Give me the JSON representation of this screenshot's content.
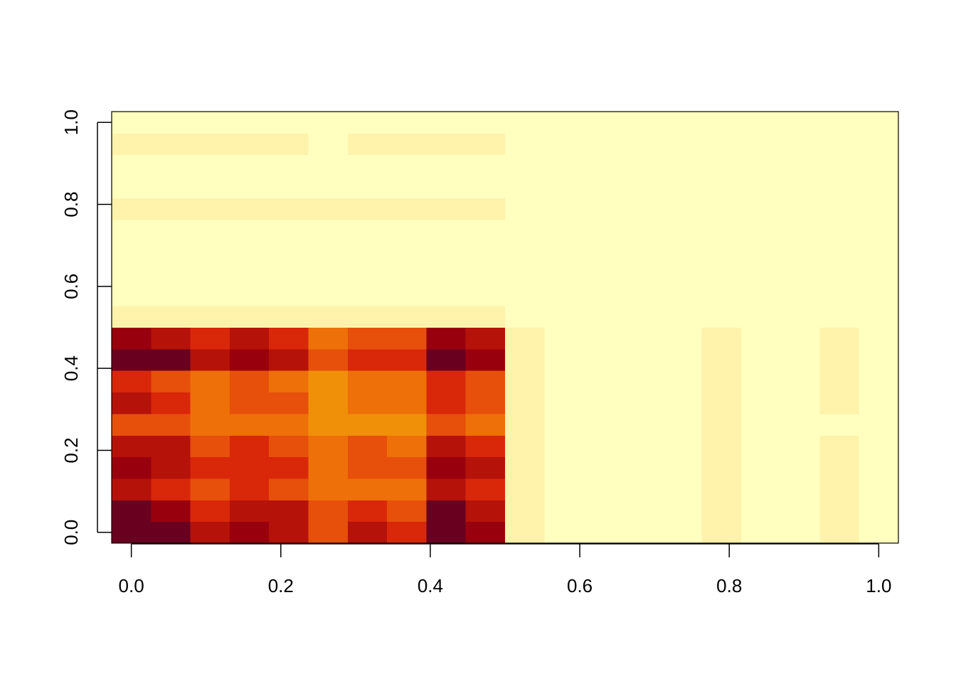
{
  "chart_data": {
    "type": "heatmap",
    "x": [
      0,
      0.0526,
      0.1053,
      0.1579,
      0.2105,
      0.2632,
      0.3158,
      0.3684,
      0.4211,
      0.4737,
      0.5263,
      0.5789,
      0.6316,
      0.6842,
      0.7368,
      0.7895,
      0.8421,
      0.8947,
      0.9474,
      1
    ],
    "y": [
      0,
      0.0526,
      0.1053,
      0.1579,
      0.2105,
      0.2632,
      0.3158,
      0.3684,
      0.4211,
      0.4737,
      0.5263,
      0.5789,
      0.6316,
      0.6842,
      0.7368,
      0.7895,
      0.8421,
      0.8947,
      0.9474,
      1
    ],
    "z": [
      [
        8,
        8,
        6,
        7,
        6,
        4,
        6,
        5,
        8,
        7,
        1,
        0,
        0,
        0,
        0,
        1,
        0,
        0,
        1,
        0
      ],
      [
        8,
        7,
        5,
        6,
        6,
        4,
        5,
        4,
        8,
        6,
        1,
        0,
        0,
        0,
        0,
        1,
        0,
        0,
        1,
        0
      ],
      [
        6,
        5,
        4,
        5,
        4,
        3,
        3,
        3,
        6,
        5,
        1,
        0,
        0,
        0,
        0,
        1,
        0,
        0,
        1,
        0
      ],
      [
        7,
        6,
        5,
        5,
        5,
        3,
        4,
        4,
        7,
        6,
        1,
        0,
        0,
        0,
        0,
        1,
        0,
        0,
        1,
        0
      ],
      [
        6,
        6,
        4,
        5,
        4,
        3,
        4,
        3,
        6,
        5,
        1,
        0,
        0,
        0,
        0,
        1,
        0,
        0,
        1,
        0
      ],
      [
        4,
        4,
        3,
        3,
        3,
        2,
        2,
        2,
        4,
        3,
        1,
        0,
        0,
        0,
        0,
        1,
        0,
        0,
        0,
        0
      ],
      [
        6,
        5,
        3,
        4,
        4,
        2,
        3,
        3,
        5,
        4,
        1,
        0,
        0,
        0,
        0,
        1,
        0,
        0,
        1,
        0
      ],
      [
        5,
        4,
        3,
        4,
        3,
        2,
        3,
        3,
        5,
        4,
        1,
        0,
        0,
        0,
        0,
        1,
        0,
        0,
        1,
        0
      ],
      [
        8,
        8,
        6,
        7,
        6,
        4,
        5,
        5,
        8,
        7,
        1,
        0,
        0,
        0,
        0,
        1,
        0,
        0,
        1,
        0
      ],
      [
        7,
        6,
        5,
        6,
        5,
        3,
        4,
        4,
        7,
        6,
        1,
        0,
        0,
        0,
        0,
        1,
        0,
        0,
        1,
        0
      ],
      [
        1,
        1,
        1,
        1,
        1,
        1,
        1,
        1,
        1,
        1,
        0,
        0,
        0,
        0,
        0,
        0,
        0,
        0,
        0,
        0
      ],
      [
        0,
        0,
        0,
        0,
        0,
        0,
        0,
        0,
        0,
        0,
        0,
        0,
        0,
        0,
        0,
        0,
        0,
        0,
        0,
        0
      ],
      [
        0,
        0,
        0,
        0,
        0,
        0,
        0,
        0,
        0,
        0,
        0,
        0,
        0,
        0,
        0,
        0,
        0,
        0,
        0,
        0
      ],
      [
        0,
        0,
        0,
        0,
        0,
        0,
        0,
        0,
        0,
        0,
        0,
        0,
        0,
        0,
        0,
        0,
        0,
        0,
        0,
        0
      ],
      [
        0,
        0,
        0,
        0,
        0,
        0,
        0,
        0,
        0,
        0,
        0,
        0,
        0,
        0,
        0,
        0,
        0,
        0,
        0,
        0
      ],
      [
        1,
        1,
        1,
        1,
        1,
        1,
        1,
        1,
        1,
        1,
        0,
        0,
        0,
        0,
        0,
        0,
        0,
        0,
        0,
        0
      ],
      [
        0,
        0,
        0,
        0,
        0,
        0,
        0,
        0,
        0,
        0,
        0,
        0,
        0,
        0,
        0,
        0,
        0,
        0,
        0,
        0
      ],
      [
        0,
        0,
        0,
        0,
        0,
        0,
        0,
        0,
        0,
        0,
        0,
        0,
        0,
        0,
        0,
        0,
        0,
        0,
        0,
        0
      ],
      [
        1,
        1,
        1,
        1,
        1,
        0,
        1,
        1,
        1,
        1,
        0,
        0,
        0,
        0,
        0,
        0,
        0,
        0,
        0,
        0
      ],
      [
        0,
        0,
        0,
        0,
        0,
        0,
        0,
        0,
        0,
        0,
        0,
        0,
        0,
        0,
        0,
        0,
        0,
        0,
        0,
        0
      ]
    ],
    "zlim": [
      0,
      8
    ],
    "colors": [
      "#FFFFBF",
      "#FFF2AA",
      "#F09009",
      "#EE7008",
      "#E6500B",
      "#D9270A",
      "#B5120A",
      "#99000D",
      "#690020"
    ],
    "xlim": [
      -0.0263,
      1.0263
    ],
    "ylim": [
      -0.0263,
      1.0263
    ],
    "xticks": [
      {
        "value": 0,
        "label": "0.0"
      },
      0.2,
      0.4,
      0.6,
      0.8,
      {
        "value": 1,
        "label": "1.0"
      }
    ],
    "yticks": [
      {
        "value": 0,
        "label": "0.0"
      },
      0.2,
      0.4,
      0.6,
      0.8,
      {
        "value": 1,
        "label": "1.0"
      }
    ]
  }
}
